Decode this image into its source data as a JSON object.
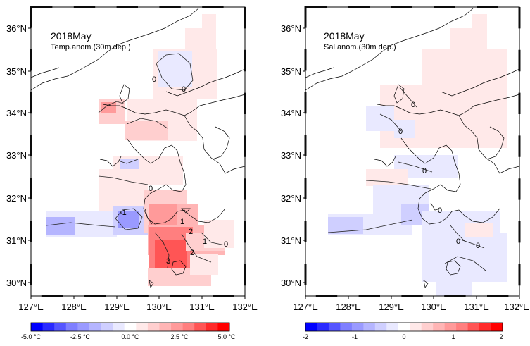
{
  "panels": [
    {
      "title": "2018May",
      "subtitle": "Temp.anom.(30m dep.)",
      "lat_ticks": [
        "36°N",
        "35°N",
        "34°N",
        "33°N",
        "32°N",
        "31°N",
        "30°N"
      ],
      "lon_ticks": [
        "127°E",
        "128°E",
        "129°E",
        "130°E",
        "131°E",
        "132°E"
      ],
      "contour_labels": [
        "0",
        "0",
        "0",
        "-1",
        "1",
        "2",
        "3",
        "2",
        "1",
        "0"
      ],
      "colorbar_labels": [
        "-5.0 °C",
        "-2.5 °C",
        "0.0 °C",
        "2.5 °C",
        "5.0 °C"
      ]
    },
    {
      "title": "2018May",
      "subtitle": "Sal.anom.(30m dep.)",
      "lat_ticks": [
        "36°N",
        "35°N",
        "34°N",
        "33°N",
        "32°N",
        "31°N",
        "30°N"
      ],
      "lon_ticks": [
        "127°E",
        "128°E",
        "129°E",
        "130°E",
        "131°E",
        "132°E"
      ],
      "contour_labels": [
        "0",
        "0",
        "0",
        "0",
        "0",
        "0"
      ],
      "colorbar_labels": [
        "-2",
        "-1",
        "0",
        "1",
        "2"
      ]
    }
  ],
  "colors": {
    "scale": [
      "#0000ff",
      "#2a2aff",
      "#5555ff",
      "#7f7fff",
      "#9a9aff",
      "#b5b5ff",
      "#cfcfff",
      "#e9e9ff",
      "#ffffff",
      "#ffe9e9",
      "#ffcfcf",
      "#ffb5b5",
      "#ff9a9a",
      "#ff7f7f",
      "#ff5555",
      "#ff2a2a",
      "#ff0000"
    ]
  }
}
